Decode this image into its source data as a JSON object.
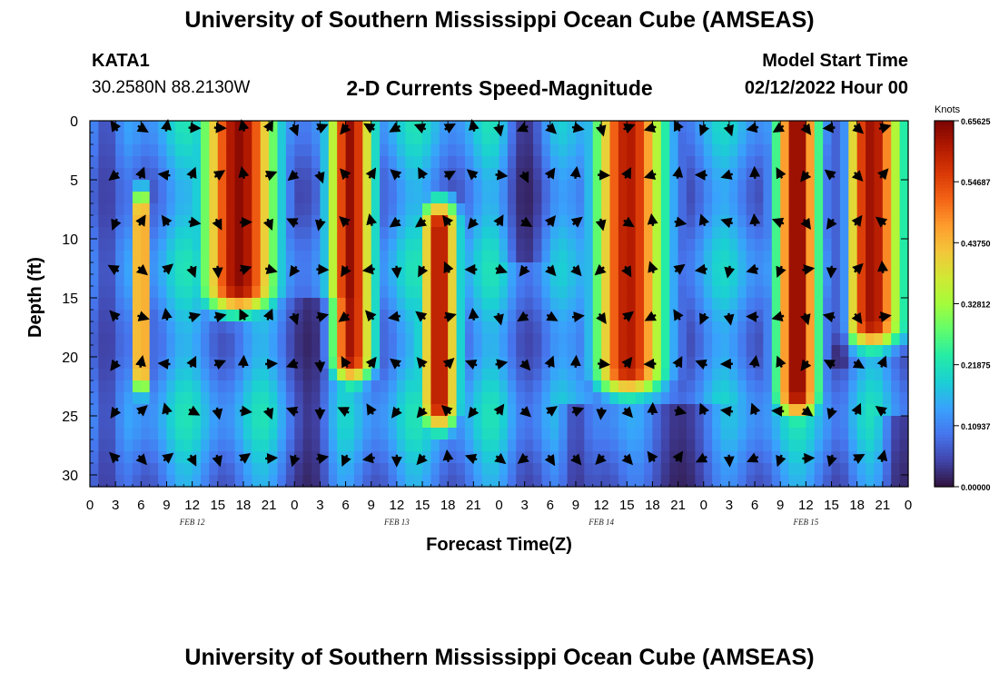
{
  "header": {
    "title": "University of Southern Mississippi Ocean Cube (AMSEAS)",
    "station": "KATA1",
    "coords": "30.2580N  88.2130W",
    "subtitle": "2-D Currents Speed-Magnitude",
    "model_label": "Model Start Time",
    "model_time": "02/12/2022 Hour 00"
  },
  "footer": {
    "title": "University of Southern Mississippi Ocean Cube (AMSEAS)"
  },
  "chart_data": {
    "type": "heatmap",
    "title": "2-D Currents Speed-Magnitude",
    "xlabel": "Forecast Time(Z)",
    "ylabel": "Depth (ft)",
    "x_range_hours": [
      0,
      96
    ],
    "y_range_ft": [
      0,
      31
    ],
    "y_reversed": true,
    "x_ticks": [
      0,
      3,
      6,
      9,
      12,
      15,
      18,
      21,
      24,
      27,
      30,
      33,
      36,
      39,
      42,
      45,
      48,
      51,
      54,
      57,
      60,
      63,
      66,
      69,
      72,
      75,
      78,
      81,
      84,
      87,
      90,
      93,
      96
    ],
    "x_tick_labels": [
      "0",
      "3",
      "6",
      "9",
      "12",
      "15",
      "18",
      "21",
      "0",
      "3",
      "6",
      "9",
      "12",
      "15",
      "18",
      "21",
      "0",
      "3",
      "6",
      "9",
      "12",
      "15",
      "18",
      "21",
      "0",
      "3",
      "6",
      "9",
      "12",
      "15",
      "18",
      "21",
      "0"
    ],
    "date_labels": [
      {
        "text": "FEB 12",
        "hour": 12
      },
      {
        "text": "FEB 13",
        "hour": 36
      },
      {
        "text": "FEB 14",
        "hour": 60
      },
      {
        "text": "FEB 15",
        "hour": 84
      }
    ],
    "y_ticks": [
      0,
      5,
      10,
      15,
      20,
      25,
      30
    ],
    "colorbar": {
      "unit": "Knots",
      "min": 0.0,
      "max": 0.65625,
      "tick_values": [
        0.0,
        0.109375,
        0.21875,
        0.328125,
        0.4375,
        0.546875,
        0.65625
      ],
      "tick_labels": [
        "0.00000",
        "0.10937",
        "0.21875",
        "0.32812",
        "0.43750",
        "0.54687",
        "0.65625"
      ],
      "colors": [
        "#30123b",
        "#4145ab",
        "#4675ed",
        "#39a2fc",
        "#1bcfd4",
        "#24eca6",
        "#61fc6c",
        "#a4fc3b",
        "#d1e834",
        "#f3c63a",
        "#fe9b2d",
        "#f36315",
        "#d93806",
        "#b11901",
        "#7a0403"
      ]
    },
    "strong_bands": [
      {
        "center": 6,
        "width": 1.1,
        "depth_top": 8,
        "depth_bottom": 21,
        "peak": 0.55
      },
      {
        "center": 17.5,
        "width": 4.5,
        "depth_top": 0,
        "depth_bottom": 14,
        "peak": 0.64
      },
      {
        "center": 30.5,
        "width": 2.8,
        "depth_top": 0,
        "depth_bottom": 20,
        "peak": 0.64
      },
      {
        "center": 41,
        "width": 2.3,
        "depth_top": 9,
        "depth_bottom": 24,
        "peak": 0.62
      },
      {
        "center": 63.5,
        "width": 4.5,
        "depth_top": 0,
        "depth_bottom": 21,
        "peak": 0.65
      },
      {
        "center": 83,
        "width": 2.6,
        "depth_top": 0,
        "depth_bottom": 23,
        "peak": 0.65
      },
      {
        "center": 92,
        "width": 4.0,
        "depth_top": 0,
        "depth_bottom": 17,
        "peak": 0.64
      }
    ],
    "calm_bands": [
      {
        "center": 2,
        "width": 2,
        "depth_top": 0,
        "depth_bottom": 31
      },
      {
        "center": 26,
        "width": 2.5,
        "depth_top": 15,
        "depth_bottom": 31
      },
      {
        "center": 51,
        "width": 2,
        "depth_top": 0,
        "depth_bottom": 12
      },
      {
        "center": 57,
        "width": 2,
        "depth_top": 24,
        "depth_bottom": 31
      },
      {
        "center": 69,
        "width": 5,
        "depth_top": 24,
        "depth_bottom": 31
      },
      {
        "center": 88,
        "width": 1,
        "depth_top": 0,
        "depth_bottom": 21
      },
      {
        "center": 95,
        "width": 2,
        "depth_top": 25,
        "depth_bottom": 31
      }
    ]
  }
}
